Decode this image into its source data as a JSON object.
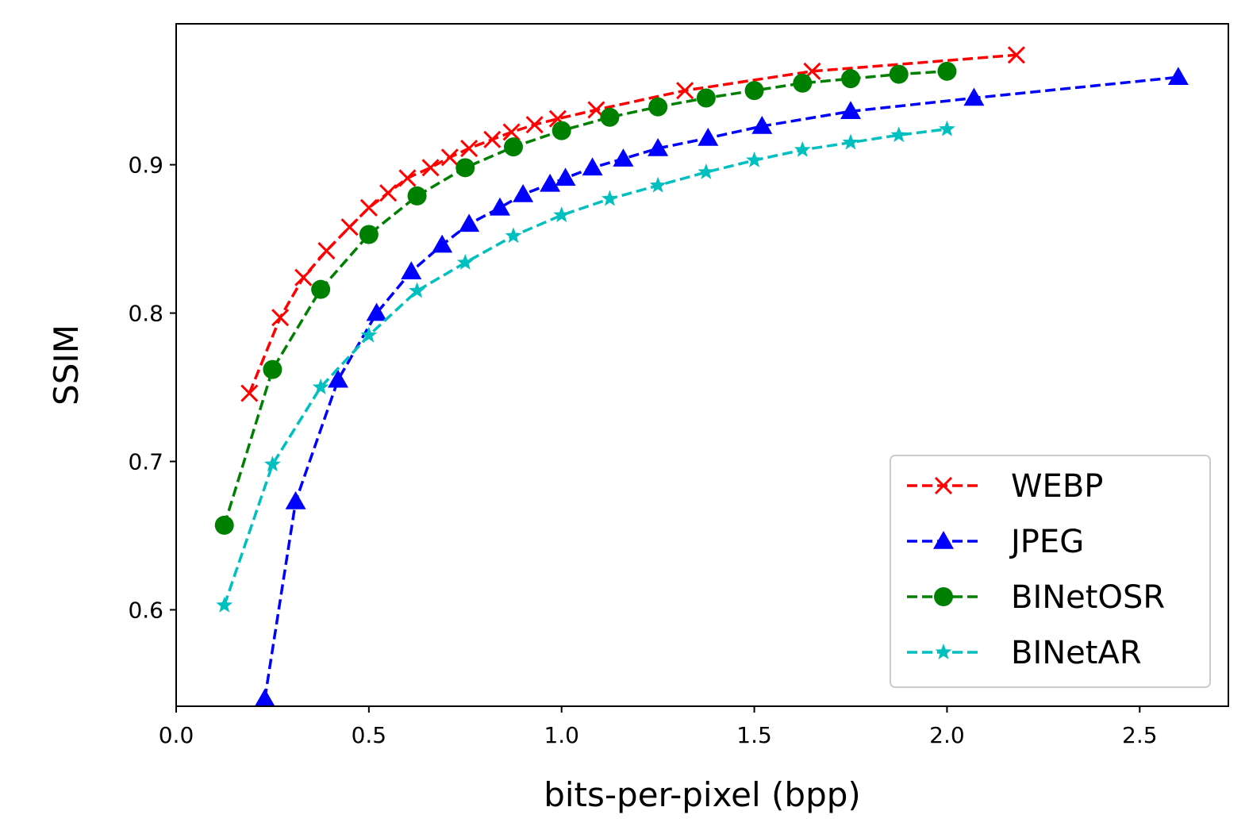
{
  "chart_data": {
    "type": "line",
    "xlabel": "bits-per-pixel (bpp)",
    "ylabel": "SSIM",
    "xlim": [
      0.0,
      2.73
    ],
    "ylim": [
      0.535,
      0.995
    ],
    "xticks": [
      0.0,
      0.5,
      1.0,
      1.5,
      2.0,
      2.5
    ],
    "xtick_labels": [
      "0.0",
      "0.5",
      "1.0",
      "1.5",
      "2.0",
      "2.5"
    ],
    "yticks": [
      0.6,
      0.7,
      0.8,
      0.9
    ],
    "ytick_labels": [
      "0.6",
      "0.7",
      "0.8",
      "0.9"
    ],
    "grid": false,
    "legend_position": "bottom-right",
    "series": [
      {
        "name": "WEBP",
        "color": "#ff0000",
        "marker": "x",
        "line_style": "dashed",
        "x": [
          0.19,
          0.27,
          0.33,
          0.39,
          0.45,
          0.5,
          0.55,
          0.6,
          0.66,
          0.71,
          0.76,
          0.82,
          0.87,
          0.93,
          0.99,
          1.09,
          1.32,
          1.65,
          2.18
        ],
        "y": [
          0.746,
          0.797,
          0.824,
          0.842,
          0.858,
          0.871,
          0.881,
          0.891,
          0.898,
          0.905,
          0.911,
          0.917,
          0.922,
          0.927,
          0.931,
          0.937,
          0.95,
          0.963,
          0.974
        ]
      },
      {
        "name": "JPEG",
        "color": "#0000ff",
        "marker": "triangle",
        "line_style": "dashed",
        "x": [
          0.23,
          0.31,
          0.42,
          0.52,
          0.61,
          0.69,
          0.76,
          0.84,
          0.9,
          0.97,
          1.01,
          1.08,
          1.16,
          1.25,
          1.38,
          1.52,
          1.75,
          2.07,
          2.6
        ],
        "y": [
          0.54,
          0.673,
          0.755,
          0.8,
          0.828,
          0.846,
          0.86,
          0.871,
          0.88,
          0.887,
          0.891,
          0.898,
          0.904,
          0.911,
          0.918,
          0.926,
          0.936,
          0.945,
          0.959
        ]
      },
      {
        "name": "BINetOSR",
        "color": "#008000",
        "marker": "circle",
        "line_style": "dashed",
        "x": [
          0.125,
          0.25,
          0.375,
          0.5,
          0.625,
          0.75,
          0.875,
          1.0,
          1.125,
          1.25,
          1.375,
          1.5,
          1.625,
          1.75,
          1.875,
          2.0
        ],
        "y": [
          0.657,
          0.762,
          0.816,
          0.853,
          0.879,
          0.898,
          0.912,
          0.923,
          0.932,
          0.939,
          0.945,
          0.95,
          0.955,
          0.958,
          0.961,
          0.963
        ]
      },
      {
        "name": "BINetAR",
        "color": "#00bfbf",
        "marker": "star",
        "line_style": "dashed",
        "x": [
          0.125,
          0.25,
          0.375,
          0.5,
          0.625,
          0.75,
          0.875,
          1.0,
          1.125,
          1.25,
          1.375,
          1.5,
          1.625,
          1.75,
          1.875,
          2.0
        ],
        "y": [
          0.603,
          0.698,
          0.75,
          0.785,
          0.815,
          0.834,
          0.852,
          0.866,
          0.877,
          0.886,
          0.895,
          0.903,
          0.91,
          0.915,
          0.92,
          0.924
        ]
      }
    ]
  }
}
